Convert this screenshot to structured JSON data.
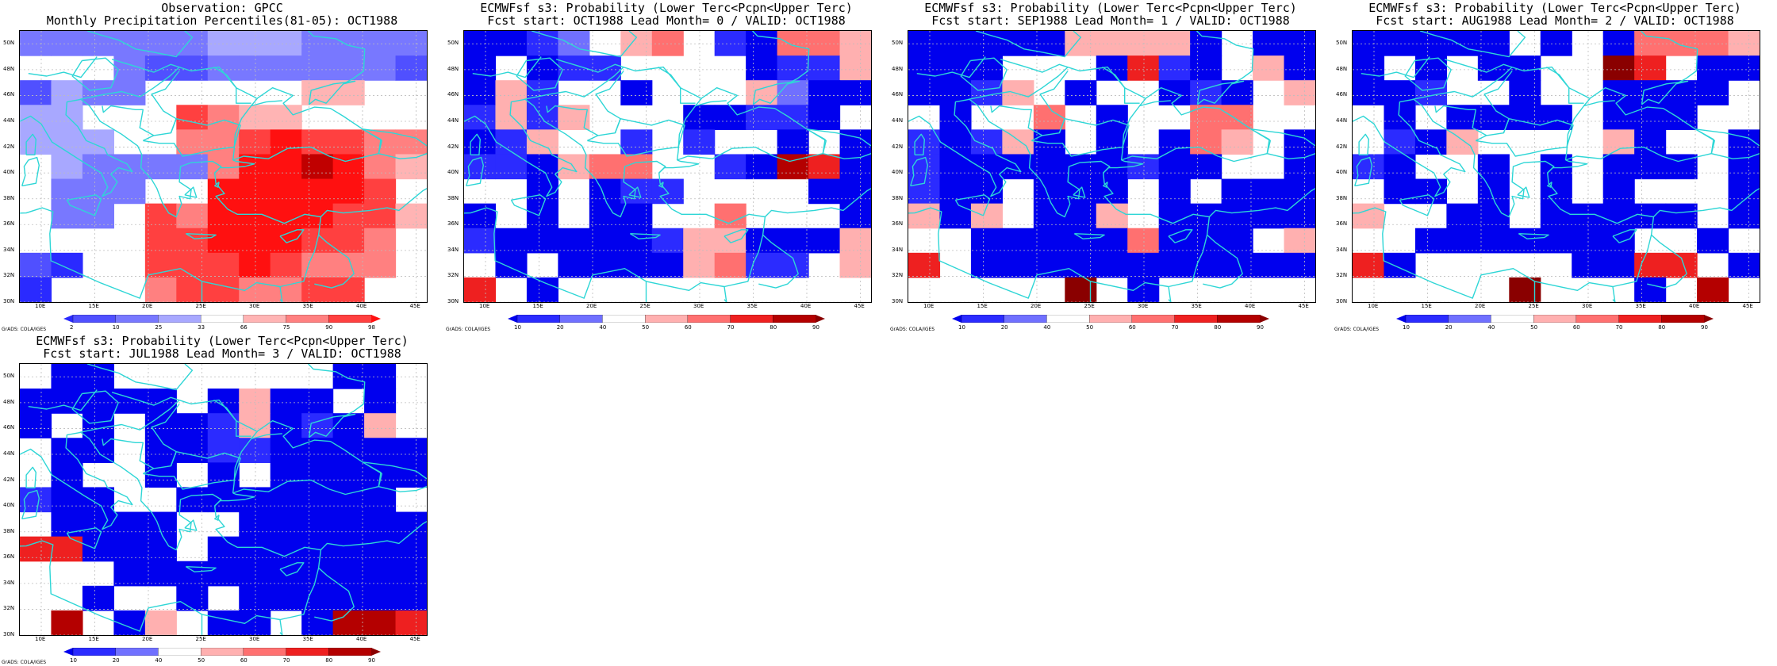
{
  "credit": "GrADS: COLA/IGES",
  "lat_labels": [
    "30N",
    "32N",
    "34N",
    "36N",
    "38N",
    "40N",
    "42N",
    "44N",
    "46N",
    "48N",
    "50N"
  ],
  "lon_labels": [
    "10E",
    "15E",
    "20E",
    "25E",
    "30E",
    "35E",
    "40E",
    "45E"
  ],
  "colors": {
    "coast": "#2ed6d6",
    "grid": "#bdbdbd",
    "prob_scale": [
      "#0000ee",
      "#2b2bff",
      "#7070ff",
      "#ffffff",
      "#ffb0b0",
      "#ff7070",
      "#ee2020",
      "#b40000",
      "#8a0000"
    ],
    "perc_scale": [
      "#2a2aff",
      "#5050ff",
      "#7878ff",
      "#a8a8ff",
      "#ffffff",
      "#ffb4b4",
      "#ff8080",
      "#ff4040",
      "#ff1010",
      "#c00000"
    ]
  },
  "panels": [
    {
      "title1": "Observation: GPCC",
      "title2": "Monthly Precipitation Percentiles(81-05): OCT1988",
      "legend_ticks": [
        "2",
        "10",
        "25",
        "33",
        "66",
        "75",
        "90",
        "98"
      ],
      "scale": "perc",
      "grid": [
        "2222223332222",
        "4442112222221",
        "1322444445544",
        "3344476554444",
        "3334466787766",
        "4322226889865",
        "4222448888874",
        "4224768888775",
        "4444778887764",
        "1044777876664",
        "0444677667744"
      ]
    },
    {
      "title1": "ECMWFsf s3: Probability (Lower Terc<Pcpn<Upper Terc)",
      "title2": "Fcst start: OCT1988  Lead Month= 0 / VALID: OCT1988",
      "legend_ticks": [
        "10",
        "20",
        "40",
        "50",
        "60",
        "70",
        "80",
        "90"
      ],
      "scale": "prob",
      "grid": [
        "0012345310554",
        "0301133330114",
        "0413303334200",
        "1414333001103",
        "0143313133030",
        "1104553310760",
        "3303011333300",
        "0303003353330",
        "1000001440004",
        "3030000451134",
        "6303333333333"
      ]
    },
    {
      "title1": "ECMWFsf s3: Probability (Lower Terc<Pcpn<Upper Terc)",
      "title2": "Fcst start: SEP1988  Lead Month= 1 / VALID: OCT1988",
      "legend_ticks": [
        "10",
        "20",
        "40",
        "50",
        "60",
        "70",
        "80",
        "90"
      ],
      "scale": "prob",
      "grid": [
        "0000044440300",
        "0003330610340",
        "0014303301034",
        "3033530335533",
        "1014030305430",
        "1000000100330",
        "1003000303000",
        "4043004300000",
        "3300000500034",
        "6300000000000",
        "3333393033333"
      ]
    },
    {
      "title1": "ECMWFsf s3: Probability (Lower Terc<Pcpn<Upper Terc)",
      "title2": "Fcst start: AUG1988  Lead Month= 2 / VALID: OCT1988",
      "legend_ticks": [
        "10",
        "20",
        "40",
        "50",
        "60",
        "70",
        "80",
        "90"
      ],
      "scale": "prob",
      "grid": [
        "0000030305554",
        "0303003386300",
        "0013303300003",
        "3030000300033",
        "3104333340330",
        "1033030300030",
        "3003030303330",
        "4330030000030",
        "3300000003303",
        "6033333006630",
        "3333393330373"
      ]
    },
    {
      "title1": "ECMWFsf s3: Probability (Lower Terc<Pcpn<Upper Terc)",
      "title2": "Fcst start: JUL1988  Lead Month= 3 / VALID: OCT1988",
      "legend_ticks": [
        "10",
        "20",
        "40",
        "50",
        "60",
        "70",
        "80",
        "90"
      ],
      "scale": "prob",
      "grid": [
        "3003333333003",
        "0000030400303",
        "0303001401043",
        "3003001100000",
        "3033030300000",
        "1003300000003",
        "3000033000000",
        "6600030000000",
        "3330000000000",
        "3303303000000",
        "3730430030776"
      ]
    }
  ]
}
